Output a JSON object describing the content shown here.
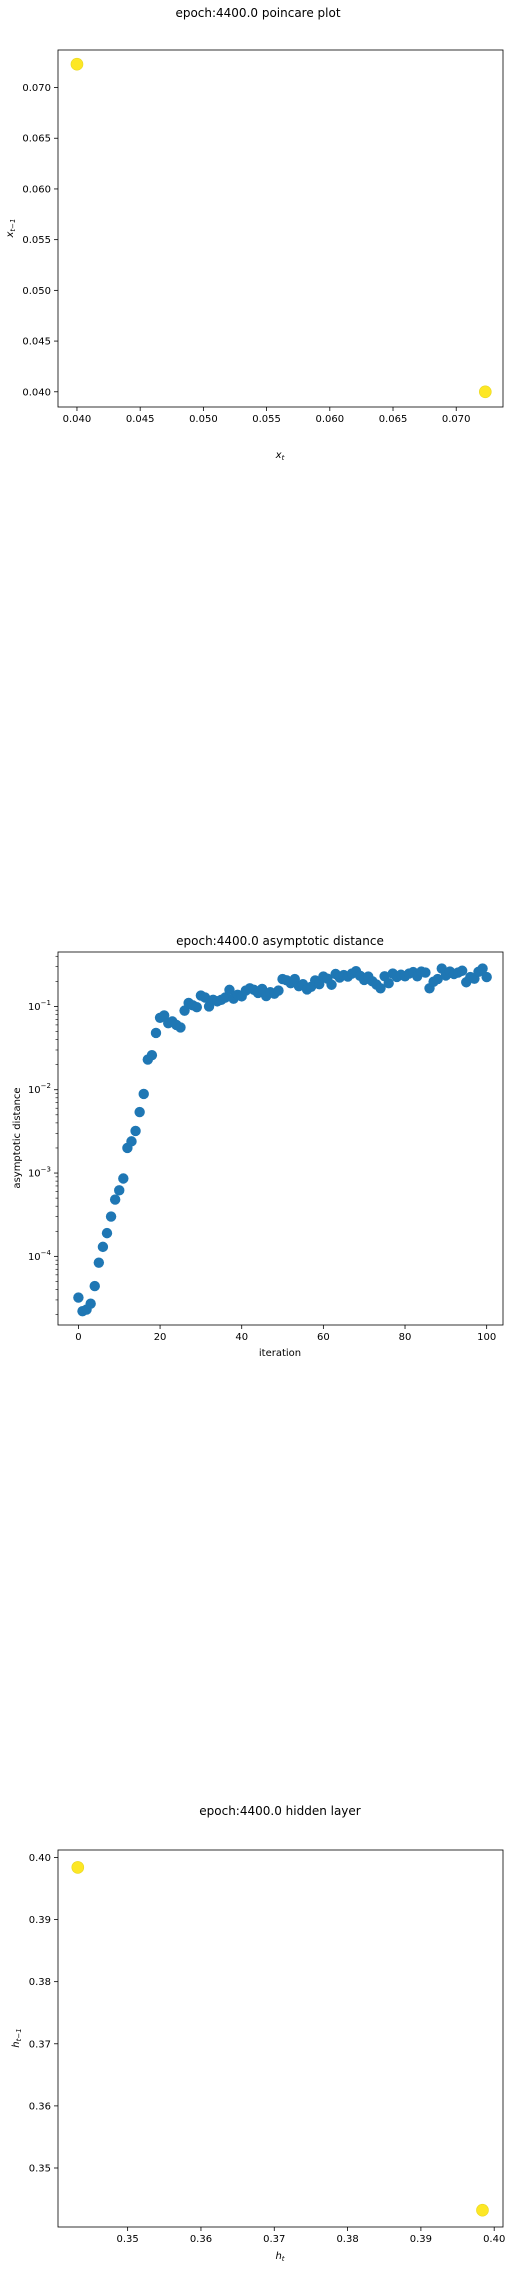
{
  "colors": {
    "yellow_marker": "#fde725",
    "blue_marker": "#1f77b4"
  },
  "chart_data": [
    {
      "type": "scatter",
      "title": "epoch:4400.0 poincare plot",
      "xlabel": "x_t",
      "ylabel": "x_{t-1}",
      "xlim": [
        0.0385,
        0.0737
      ],
      "ylim": [
        0.0385,
        0.0737
      ],
      "xticks": [
        "0.040",
        "0.045",
        "0.050",
        "0.055",
        "0.060",
        "0.065",
        "0.070"
      ],
      "yticks": [
        "0.040",
        "0.045",
        "0.050",
        "0.055",
        "0.060",
        "0.065",
        "0.070"
      ],
      "points": [
        [
          0.04,
          0.0723
        ],
        [
          0.0723,
          0.04
        ]
      ]
    },
    {
      "type": "scatter",
      "title": "epoch:4400.0 asymptotic distance",
      "xlabel": "iteration",
      "ylabel": "asymptotic distance",
      "yscale": "log",
      "xlim": [
        -5,
        104
      ],
      "ylim": [
        1.5e-05,
        0.45
      ],
      "xticks": [
        "0",
        "20",
        "40",
        "60",
        "80",
        "100"
      ],
      "yticks": [
        "10^-4",
        "10^-3",
        "10^-2",
        "10^-1"
      ],
      "x": [
        0,
        1,
        2,
        3,
        4,
        5,
        6,
        7,
        8,
        9,
        10,
        11,
        12,
        13,
        14,
        15,
        16,
        17,
        18,
        19,
        20,
        21,
        22,
        23,
        24,
        25,
        26,
        27,
        28,
        29,
        30,
        31,
        32,
        33,
        34,
        35,
        36,
        37,
        38,
        39,
        40,
        41,
        42,
        43,
        44,
        45,
        46,
        47,
        48,
        49,
        50,
        51,
        52,
        53,
        54,
        55,
        56,
        57,
        58,
        59,
        60,
        61,
        62,
        63,
        64,
        65,
        66,
        67,
        68,
        69,
        70,
        71,
        72,
        73,
        74,
        75,
        76,
        77,
        78,
        79,
        80,
        81,
        82,
        83,
        84,
        85,
        86,
        87,
        88,
        89,
        90,
        91,
        92,
        93,
        94,
        95,
        96,
        97,
        98,
        99,
        100
      ],
      "y": [
        3.2e-05,
        2.2e-05,
        2.3e-05,
        2.7e-05,
        4.4e-05,
        8.4e-05,
        0.00013,
        0.00019,
        0.0003,
        0.00048,
        0.00062,
        0.00086,
        0.002,
        0.0024,
        0.0032,
        0.0054,
        0.0089,
        0.023,
        0.026,
        0.048,
        0.073,
        0.078,
        0.063,
        0.066,
        0.06,
        0.056,
        0.089,
        0.11,
        0.103,
        0.098,
        0.135,
        0.128,
        0.1,
        0.12,
        0.115,
        0.12,
        0.128,
        0.158,
        0.124,
        0.138,
        0.132,
        0.155,
        0.165,
        0.158,
        0.145,
        0.162,
        0.133,
        0.148,
        0.142,
        0.155,
        0.213,
        0.206,
        0.19,
        0.213,
        0.175,
        0.185,
        0.16,
        0.172,
        0.205,
        0.185,
        0.228,
        0.215,
        0.182,
        0.245,
        0.222,
        0.238,
        0.228,
        0.248,
        0.265,
        0.233,
        0.208,
        0.228,
        0.2,
        0.183,
        0.165,
        0.23,
        0.19,
        0.248,
        0.226,
        0.24,
        0.23,
        0.248,
        0.258,
        0.23,
        0.262,
        0.255,
        0.165,
        0.198,
        0.213,
        0.285,
        0.235,
        0.262,
        0.245,
        0.255,
        0.268,
        0.195,
        0.225,
        0.215,
        0.26,
        0.285,
        0.225
      ]
    },
    {
      "type": "scatter",
      "title": "epoch:4400.0 hidden layer",
      "xlabel": "h_t",
      "ylabel": "h_{t-1}",
      "xlim": [
        0.3405,
        0.4012
      ],
      "ylim": [
        0.3405,
        0.4012
      ],
      "xticks": [
        "0.35",
        "0.36",
        "0.37",
        "0.38",
        "0.39",
        "0.40"
      ],
      "yticks": [
        "0.35",
        "0.36",
        "0.37",
        "0.38",
        "0.39",
        "0.40"
      ],
      "points": [
        [
          0.3432,
          0.3984
        ],
        [
          0.3984,
          0.3432
        ]
      ]
    }
  ]
}
